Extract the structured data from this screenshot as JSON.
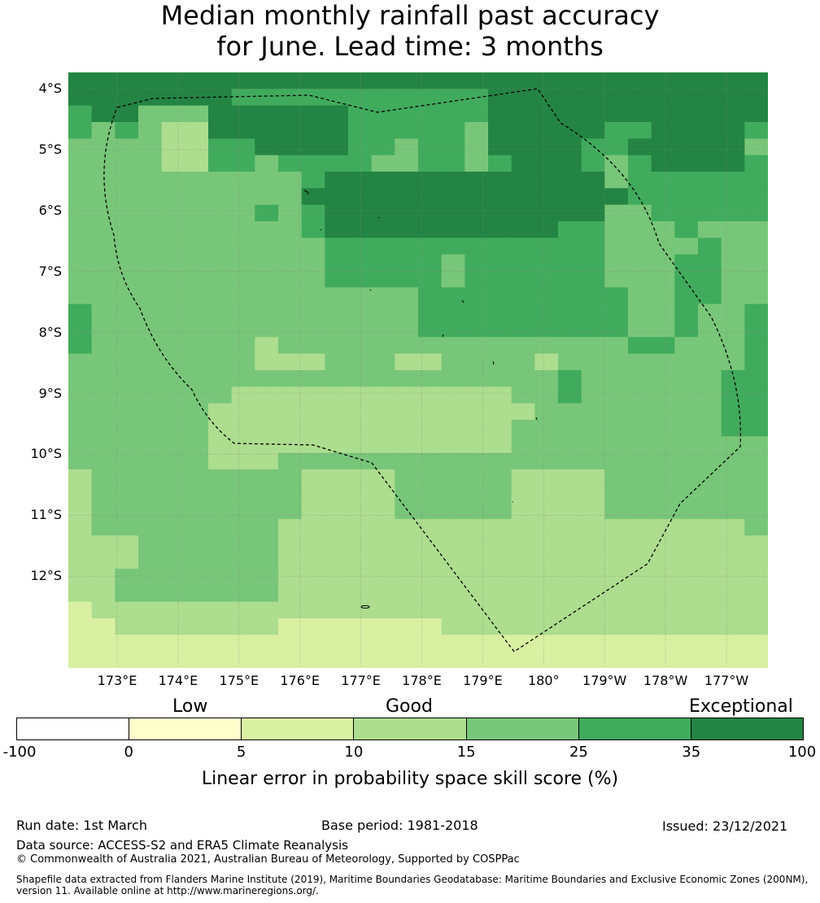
{
  "title_line1": "Median monthly rainfall past accuracy",
  "title_line2": "for June. Lead time: 3 months",
  "lat_labels": [
    "4°S",
    "5°S",
    "6°S",
    "7°S",
    "8°S",
    "9°S",
    "10°S",
    "11°S",
    "12°S"
  ],
  "lon_labels": [
    "173°E",
    "174°E",
    "175°E",
    "176°E",
    "177°E",
    "178°E",
    "179°E",
    "180°",
    "179°W",
    "178°W",
    "177°W"
  ],
  "categories": {
    "low": "Low",
    "good": "Good",
    "exceptional": "Exceptional"
  },
  "colorbar": {
    "ticks": [
      "-100",
      "0",
      "5",
      "10",
      "15",
      "25",
      "35",
      "100"
    ],
    "colors": [
      "#ffffff",
      "#ffffcc",
      "#d9f0a3",
      "#addd8e",
      "#78c679",
      "#41ab5d",
      "#238443"
    ],
    "label": "Linear error in probability space skill score (%)"
  },
  "footer": {
    "run_date": "Run date: 1st March",
    "base_period": "Base period: 1981-2018",
    "issued": "Issued: 23/12/2021",
    "data_source": "Data source: ACCESS-S2 and ERA5 Climate Reanalysis",
    "copyright": "© Commonwealth of Australia 2021, Australian Bureau of Meteorology, Supported by COSPPac",
    "shapefile_line1": "Shapefile data extracted from Flanders Marine Institute (2019), Maritime Boundaries Geodatabase: Maritime Boundaries and Exclusive Economic Zones (200NM),",
    "shapefile_line2": "version 11. Available online at http://www.marineregions.org/."
  },
  "grid": [
    "666666666666666666666666666666",
    "666666655555555555666666666666",
    "566444666666555555666666666666",
    "545433666666555554666665566665",
    "444433556666554554666655666664",
    "444433554555544554566654566665",
    "444444444456666666666664555555",
    "444444444466666666666666555555",
    "444444445456666666666664455555",
    "444444444456666666666554445444",
    "444444444445555555555554444544",
    "444444444445555545555554445544",
    "444444444445555545555554445544",
    "444444444444444555555555445544",
    "544444444444444555555555445445",
    "544444444444444555555555445445",
    "544444443444444444444444554445",
    "444444443334443344443444444445",
    "444444444444444444444544444455",
    "444444433333333333344544444455",
    "444444333333333333334444444455",
    "444444333333333333344444444455",
    "444444333333333333344444444444",
    "444444333444444444444444444444",
    "344444444433334444433334444444",
    "344444444433334444433334444444",
    "344444444433334444433334444444",
    "344444444333333333333333333334",
    "333444444333333333333333333333",
    "333444444333333333333333333333",
    "334444444333333333333333333333",
    "334444444333333333333333333333",
    "233333333333333333333333333333",
    "223333333222222233333333333333",
    "222222222222222222222222222222",
    "222222222222222222222222222222"
  ]
}
